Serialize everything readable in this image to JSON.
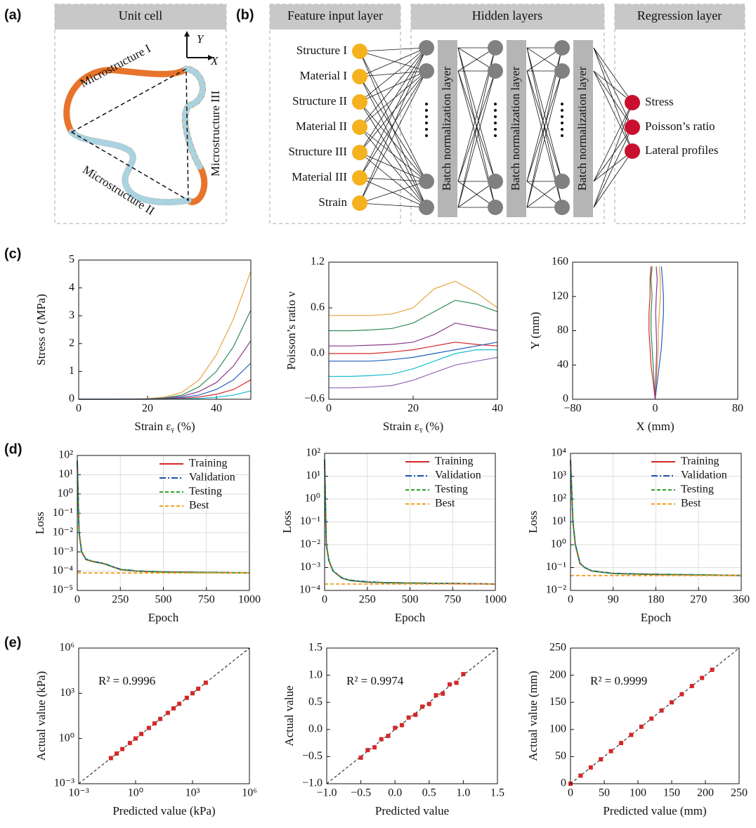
{
  "panel_labels": [
    "(a)",
    "(b)",
    "(c)",
    "(d)",
    "(e)"
  ],
  "unit_cell": {
    "title": "Unit cell",
    "labels": [
      "Microstructure I",
      "Microstructure II",
      "Microstructure III"
    ],
    "axes": [
      "Y",
      "X"
    ]
  },
  "network": {
    "headers": [
      "Feature input layer",
      "Hidden layers",
      "Regression layer"
    ],
    "inputs": [
      "Structure I",
      "Material I",
      "Structure II",
      "Material II",
      "Structure III",
      "Material III",
      "Strain"
    ],
    "hidden": [
      "Batch normalization layer",
      "Batch normalization layer",
      "Batch normalization layer"
    ],
    "outputs": [
      "Stress",
      "Poisson’s ratio",
      "Lateral profiles"
    ]
  },
  "chart_data": [
    {
      "type": "line",
      "xlabel": "Strain εᵧ (%)",
      "ylabel": "Stress σ (MPa)",
      "xlim": [
        0,
        50
      ],
      "xticks": [
        0,
        20,
        40
      ],
      "ylim": [
        0,
        5
      ],
      "yticks": [
        0,
        1,
        2,
        3,
        4,
        5
      ],
      "x": [
        0,
        10,
        20,
        25,
        30,
        35,
        40,
        45,
        50
      ],
      "series": [
        {
          "color": "#e8a33d",
          "values": [
            0,
            0,
            0.02,
            0.08,
            0.25,
            0.7,
            1.6,
            2.9,
            4.6
          ]
        },
        {
          "color": "#2e8b57",
          "values": [
            0,
            0,
            0.01,
            0.05,
            0.15,
            0.45,
            1.0,
            1.9,
            3.2
          ]
        },
        {
          "color": "#8b3a8b",
          "values": [
            0,
            0,
            0.01,
            0.03,
            0.1,
            0.28,
            0.6,
            1.2,
            2.1
          ]
        },
        {
          "color": "#1f5fbf",
          "values": [
            0,
            0,
            0,
            0.02,
            0.06,
            0.15,
            0.35,
            0.7,
            1.3
          ]
        },
        {
          "color": "#d62728",
          "values": [
            0,
            0,
            0,
            0.01,
            0.03,
            0.08,
            0.18,
            0.35,
            0.7
          ]
        },
        {
          "color": "#17becf",
          "values": [
            0,
            0,
            0,
            0,
            0.01,
            0.03,
            0.07,
            0.15,
            0.3
          ]
        }
      ]
    },
    {
      "type": "line",
      "xlabel": "Strain εᵧ (%)",
      "ylabel": "Poisson’s ratio ν",
      "xlim": [
        0,
        40
      ],
      "xticks": [
        0,
        20,
        40
      ],
      "ylim": [
        -0.6,
        1.2
      ],
      "yticks": [
        {
          "value": -0.6,
          "label": "−0.6"
        },
        {
          "value": 0,
          "label": "0.0"
        },
        0.6,
        1.2
      ],
      "x": [
        0,
        5,
        10,
        15,
        20,
        25,
        30,
        35,
        40
      ],
      "series": [
        {
          "color": "#e8a33d",
          "values": [
            0.5,
            0.5,
            0.5,
            0.52,
            0.6,
            0.85,
            0.95,
            0.8,
            0.6
          ]
        },
        {
          "color": "#2e8b57",
          "values": [
            0.3,
            0.3,
            0.31,
            0.33,
            0.4,
            0.55,
            0.7,
            0.65,
            0.55
          ]
        },
        {
          "color": "#8b3a8b",
          "values": [
            0.1,
            0.1,
            0.11,
            0.12,
            0.15,
            0.25,
            0.4,
            0.35,
            0.3
          ]
        },
        {
          "color": "#d62728",
          "values": [
            0,
            0,
            0,
            0.02,
            0.05,
            0.1,
            0.15,
            0.12,
            0.1
          ]
        },
        {
          "color": "#1f5fbf",
          "values": [
            -0.1,
            -0.1,
            -0.1,
            -0.08,
            -0.05,
            0,
            0.05,
            0.1,
            0.15
          ]
        },
        {
          "color": "#17becf",
          "values": [
            -0.3,
            -0.3,
            -0.29,
            -0.27,
            -0.2,
            -0.1,
            0,
            0.05,
            0.05
          ]
        },
        {
          "color": "#9467bd",
          "values": [
            -0.45,
            -0.45,
            -0.44,
            -0.42,
            -0.35,
            -0.25,
            -0.15,
            -0.1,
            -0.05
          ]
        }
      ]
    },
    {
      "type": "line",
      "xlabel": "X (mm)",
      "ylabel": "Y (mm)",
      "xlim": [
        -80,
        80
      ],
      "xticks": [
        {
          "value": -80,
          "label": "−80"
        },
        0,
        80
      ],
      "ylim": [
        0,
        160
      ],
      "yticks": [
        0,
        40,
        80,
        120,
        160
      ],
      "series": [
        {
          "color": "#e8a33d",
          "x": [
            0,
            1,
            2,
            3,
            3,
            4,
            5,
            5,
            4
          ],
          "values": [
            0,
            20,
            40,
            60,
            80,
            100,
            120,
            140,
            155
          ]
        },
        {
          "color": "#2e8b57",
          "x": [
            0,
            -1,
            -2,
            -3,
            -4,
            -4,
            -3,
            -4,
            -3
          ],
          "values": [
            0,
            20,
            40,
            60,
            80,
            100,
            120,
            140,
            155
          ]
        },
        {
          "color": "#1f5fbf",
          "x": [
            0,
            2,
            4,
            6,
            7,
            8,
            8,
            7,
            6
          ],
          "values": [
            0,
            20,
            40,
            60,
            80,
            100,
            120,
            140,
            155
          ]
        },
        {
          "color": "#d62728",
          "x": [
            0,
            -2,
            -4,
            -5,
            -6,
            -6,
            -5,
            -5,
            -4
          ],
          "values": [
            0,
            20,
            40,
            60,
            80,
            100,
            120,
            140,
            155
          ]
        },
        {
          "color": "#8b3a8b",
          "x": [
            0,
            0.5,
            1,
            1.5,
            1,
            0.5,
            1,
            2,
            1
          ],
          "values": [
            0,
            20,
            40,
            60,
            80,
            100,
            120,
            140,
            155
          ]
        }
      ]
    },
    {
      "type": "line",
      "xlabel": "Epoch",
      "ylabel": "Loss",
      "yscale": "log",
      "grid": true,
      "legend": "upper right",
      "xlim": [
        0,
        1000
      ],
      "xticks": [
        0,
        250,
        500,
        750,
        1000
      ],
      "ylim": [
        1e-05,
        100
      ],
      "yticks": [
        {
          "value": 1e-05,
          "label": "10⁻⁵"
        },
        {
          "value": 0.0001,
          "label": "10⁻⁴"
        },
        {
          "value": 0.001,
          "label": "10⁻³"
        },
        {
          "value": 0.01,
          "label": "10⁻²"
        },
        {
          "value": 0.1,
          "label": "10⁻¹"
        },
        {
          "value": 1,
          "label": "10⁰"
        },
        {
          "value": 10,
          "label": "10¹"
        },
        {
          "value": 100,
          "label": "10²"
        }
      ],
      "x": [
        0,
        10,
        25,
        50,
        100,
        150,
        250,
        350,
        500,
        750,
        1000
      ],
      "series": [
        {
          "name": "Training",
          "color": "#d62728",
          "linestyle": "solid",
          "values": [
            50,
            0.01,
            0.001,
            0.0004,
            0.0003,
            0.00025,
            0.00012,
            0.0001,
            9e-05,
            8.5e-05,
            8e-05
          ]
        },
        {
          "name": "Validation",
          "color": "#1f4fa8",
          "linestyle": "dashdot",
          "values": [
            55,
            0.011,
            0.0011,
            0.00042,
            0.00031,
            0.00026,
            0.000125,
            0.000102,
            9.1e-05,
            8.6e-05,
            8.1e-05
          ]
        },
        {
          "name": "Testing",
          "color": "#2ca02c",
          "linestyle": "dashed",
          "values": [
            52,
            0.0105,
            0.00105,
            0.00041,
            0.000305,
            0.000255,
            0.000122,
            0.000101,
            9e-05,
            8.5e-05,
            8e-05
          ]
        },
        {
          "name": "Best",
          "color": "#f0a020",
          "linestyle": "dashed",
          "values": [
            8e-05,
            8e-05,
            8e-05,
            8e-05,
            8e-05,
            8e-05,
            8e-05,
            8e-05,
            8e-05,
            8e-05,
            8e-05
          ]
        }
      ]
    },
    {
      "type": "line",
      "xlabel": "Epoch",
      "ylabel": "Loss",
      "yscale": "log",
      "grid": true,
      "legend": "upper right",
      "xlim": [
        0,
        1000
      ],
      "xticks": [
        0,
        250,
        500,
        750,
        1000
      ],
      "ylim": [
        0.0001,
        100
      ],
      "yticks": [
        {
          "value": 0.0001,
          "label": "10⁻⁴"
        },
        {
          "value": 0.001,
          "label": "10⁻³"
        },
        {
          "value": 0.01,
          "label": "10⁻²"
        },
        {
          "value": 0.1,
          "label": "10⁻¹"
        },
        {
          "value": 1,
          "label": "10⁰"
        },
        {
          "value": 10,
          "label": "10¹"
        },
        {
          "value": 100,
          "label": "10²"
        }
      ],
      "x": [
        0,
        10,
        25,
        50,
        100,
        150,
        250,
        350,
        500,
        750,
        1000
      ],
      "series": [
        {
          "name": "Training",
          "color": "#d62728",
          "linestyle": "solid",
          "values": [
            50,
            0.01,
            0.002,
            0.0007,
            0.00035,
            0.00027,
            0.00023,
            0.00022,
            0.00021,
            0.0002,
            0.00019
          ]
        },
        {
          "name": "Validation",
          "color": "#1f4fa8",
          "linestyle": "dashdot",
          "values": [
            55,
            0.011,
            0.0021,
            0.00072,
            0.00036,
            0.00028,
            0.00024,
            0.00022,
            0.00021,
            0.0002,
            0.00019
          ]
        },
        {
          "name": "Testing",
          "color": "#2ca02c",
          "linestyle": "dashed",
          "values": [
            52,
            0.0105,
            0.00205,
            0.00071,
            0.00035,
            0.00027,
            0.00023,
            0.00022,
            0.00021,
            0.0002,
            0.00019
          ]
        },
        {
          "name": "Best",
          "color": "#f0a020",
          "linestyle": "dashed",
          "values": [
            0.00019,
            0.00019,
            0.00019,
            0.00019,
            0.00019,
            0.00019,
            0.00019,
            0.00019,
            0.00019,
            0.00019,
            0.00019
          ]
        }
      ]
    },
    {
      "type": "line",
      "xlabel": "Epoch",
      "ylabel": "Loss",
      "yscale": "log",
      "grid": true,
      "legend": "upper right",
      "xlim": [
        0,
        360
      ],
      "xticks": [
        0,
        90,
        180,
        270,
        360
      ],
      "ylim": [
        0.01,
        10000
      ],
      "yticks": [
        {
          "value": 0.01,
          "label": "10⁻²"
        },
        {
          "value": 0.1,
          "label": "10⁻¹"
        },
        {
          "value": 1,
          "label": "10⁰"
        },
        {
          "value": 10,
          "label": "10¹"
        },
        {
          "value": 100,
          "label": "10²"
        },
        {
          "value": 1000,
          "label": "10³"
        },
        {
          "value": 10000,
          "label": "10⁴"
        }
      ],
      "x": [
        0,
        5,
        10,
        20,
        30,
        45,
        90,
        180,
        270,
        360
      ],
      "series": [
        {
          "name": "Training",
          "color": "#d62728",
          "linestyle": "solid",
          "values": [
            5000,
            10,
            1,
            0.15,
            0.1,
            0.07,
            0.055,
            0.05,
            0.048,
            0.045
          ]
        },
        {
          "name": "Validation",
          "color": "#1f4fa8",
          "linestyle": "dashdot",
          "values": [
            5200,
            11,
            1.1,
            0.16,
            0.1,
            0.072,
            0.056,
            0.051,
            0.048,
            0.045
          ]
        },
        {
          "name": "Testing",
          "color": "#2ca02c",
          "linestyle": "dashed",
          "values": [
            5100,
            10.5,
            1.05,
            0.155,
            0.1,
            0.071,
            0.055,
            0.05,
            0.048,
            0.045
          ]
        },
        {
          "name": "Best",
          "color": "#f0a020",
          "linestyle": "dashed",
          "values": [
            0.045,
            0.045,
            0.045,
            0.045,
            0.045,
            0.045,
            0.045,
            0.045,
            0.045,
            0.045
          ]
        }
      ]
    },
    {
      "type": "scatter",
      "xlabel": "Predicted value (kPa)",
      "ylabel": "Actual value (kPa)",
      "annotation": "R² = 0.9996",
      "xscale": "log",
      "yscale": "log",
      "xlim": [
        0.001,
        1000000
      ],
      "ylim": [
        0.001,
        1000000
      ],
      "xticks": [
        {
          "value": 0.001,
          "label": "10⁻³"
        },
        {
          "value": 1,
          "label": "10⁰"
        },
        {
          "value": 1000,
          "label": "10³"
        },
        {
          "value": 1000000,
          "label": "10⁶"
        }
      ],
      "yticks": [
        {
          "value": 0.001,
          "label": "10⁻³"
        },
        {
          "value": 1,
          "label": "10⁰"
        },
        {
          "value": 1000,
          "label": "10³"
        },
        {
          "value": 1000000,
          "label": "10⁶"
        }
      ],
      "series": [
        {
          "color": "#d62728",
          "x": [
            0.05,
            0.1,
            0.2,
            0.5,
            1,
            2,
            5,
            10,
            20,
            50,
            100,
            200,
            500,
            1000,
            2000,
            5000
          ],
          "values": [
            0.05,
            0.1,
            0.2,
            0.5,
            1,
            2,
            5,
            10,
            20,
            50,
            100,
            200,
            500,
            1000,
            2000,
            5000
          ]
        }
      ]
    },
    {
      "type": "scatter",
      "xlabel": "Predicted value",
      "ylabel": "Actual value",
      "annotation": "R² = 0.9974",
      "xlim": [
        -1,
        1.5
      ],
      "ylim": [
        -1,
        1.5
      ],
      "xticks": [
        {
          "value": -1,
          "label": "−1.0"
        },
        {
          "value": -0.5,
          "label": "−0.5"
        },
        {
          "value": 0,
          "label": "0.0"
        },
        0.5,
        {
          "value": 1,
          "label": "1.0"
        },
        1.5
      ],
      "yticks": [
        {
          "value": -1,
          "label": "−1.0"
        },
        {
          "value": -0.5,
          "label": "−0.5"
        },
        {
          "value": 0,
          "label": "0.0"
        },
        0.5,
        {
          "value": 1,
          "label": "1.0"
        },
        1.5
      ],
      "series": [
        {
          "color": "#d62728",
          "x": [
            -0.5,
            -0.4,
            -0.3,
            -0.2,
            -0.1,
            0,
            0.1,
            0.2,
            0.3,
            0.4,
            0.5,
            0.6,
            0.7,
            0.8,
            0.9,
            1.0
          ],
          "values": [
            -0.52,
            -0.38,
            -0.33,
            -0.18,
            -0.12,
            0.03,
            0.08,
            0.22,
            0.27,
            0.42,
            0.47,
            0.63,
            0.66,
            0.83,
            0.86,
            1.02
          ]
        }
      ]
    },
    {
      "type": "scatter",
      "xlabel": "Predicted value (mm)",
      "ylabel": "Actual value (mm)",
      "annotation": "R² = 0.9999",
      "xlim": [
        0,
        250
      ],
      "ylim": [
        0,
        250
      ],
      "xticks": [
        0,
        50,
        100,
        150,
        200,
        250
      ],
      "yticks": [
        0,
        50,
        100,
        150,
        200,
        250
      ],
      "series": [
        {
          "color": "#d62728",
          "x": [
            0,
            15,
            30,
            45,
            60,
            75,
            90,
            105,
            120,
            135,
            150,
            165,
            180,
            195,
            210
          ],
          "values": [
            0,
            15,
            30,
            45,
            60,
            75,
            90,
            105,
            120,
            135,
            150,
            165,
            180,
            195,
            210
          ]
        }
      ]
    }
  ]
}
